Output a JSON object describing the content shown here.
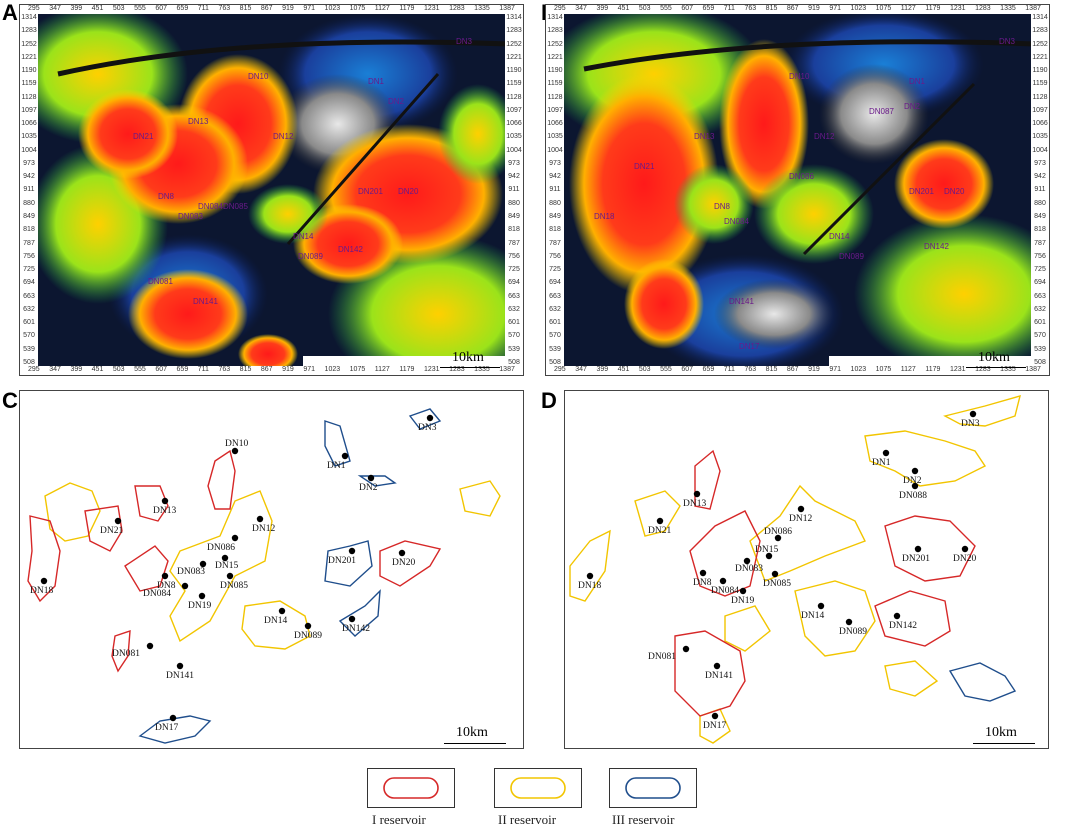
{
  "panels": {
    "A": {
      "letter": "A",
      "scale": "10km"
    },
    "B": {
      "letter": "B",
      "scale": "10km"
    },
    "C": {
      "letter": "C",
      "scale": "10km"
    },
    "D": {
      "letter": "D",
      "scale": "10km"
    }
  },
  "axis": {
    "x_ticks": [
      "295",
      "347",
      "399",
      "451",
      "503",
      "555",
      "607",
      "659",
      "711",
      "763",
      "815",
      "867",
      "919",
      "971",
      "1023",
      "1075",
      "1127",
      "1179",
      "1231",
      "1283",
      "1335",
      "1387"
    ],
    "y_ticks": [
      "1314",
      "1283",
      "1252",
      "1221",
      "1190",
      "1159",
      "1128",
      "1097",
      "1066",
      "1035",
      "1004",
      "973",
      "942",
      "911",
      "880",
      "849",
      "818",
      "787",
      "756",
      "725",
      "694",
      "663",
      "632",
      "601",
      "570",
      "539",
      "508"
    ]
  },
  "wells_C": [
    {
      "name": "DN3"
    },
    {
      "name": "DN1"
    },
    {
      "name": "DN2"
    },
    {
      "name": "DN10"
    },
    {
      "name": "DN13"
    },
    {
      "name": "DN21"
    },
    {
      "name": "DN12"
    },
    {
      "name": "DN086"
    },
    {
      "name": "DN15"
    },
    {
      "name": "DN083"
    },
    {
      "name": "DN085"
    },
    {
      "name": "DN8"
    },
    {
      "name": "DN084"
    },
    {
      "name": "DN19"
    },
    {
      "name": "DN18"
    },
    {
      "name": "DN201"
    },
    {
      "name": "DN20"
    },
    {
      "name": "DN14"
    },
    {
      "name": "DN089"
    },
    {
      "name": "DN142"
    },
    {
      "name": "DN081"
    },
    {
      "name": "DN141"
    },
    {
      "name": "DN17"
    }
  ],
  "wells_D": [
    {
      "name": "DN3"
    },
    {
      "name": "DN1"
    },
    {
      "name": "DN2"
    },
    {
      "name": "DN088"
    },
    {
      "name": "DN13"
    },
    {
      "name": "DN21"
    },
    {
      "name": "DN12"
    },
    {
      "name": "DN086"
    },
    {
      "name": "DN15"
    },
    {
      "name": "DN083"
    },
    {
      "name": "DN085"
    },
    {
      "name": "DN8"
    },
    {
      "name": "DN084"
    },
    {
      "name": "DN19"
    },
    {
      "name": "DN18"
    },
    {
      "name": "DN201"
    },
    {
      "name": "DN20"
    },
    {
      "name": "DN14"
    },
    {
      "name": "DN089"
    },
    {
      "name": "DN142"
    },
    {
      "name": "DN081"
    },
    {
      "name": "DN141"
    },
    {
      "name": "DN17"
    }
  ],
  "seismic_labels_A": [
    "DN3",
    "DN1",
    "DN2",
    "DN10",
    "DN12",
    "DN13",
    "DN21",
    "DN084",
    "DN8",
    "DN083",
    "DN085",
    "DN201",
    "DN20",
    "DN142",
    "DN089",
    "DN141",
    "DN081",
    "DN14"
  ],
  "seismic_labels_B": [
    "DN3",
    "DN1",
    "DN10",
    "DN2",
    "DN087",
    "DN12",
    "DN13",
    "DN21",
    "DN086",
    "DN201",
    "DN20",
    "DN18",
    "DN8",
    "DN084",
    "DN14",
    "DN089",
    "DN142",
    "DN141",
    "DN17"
  ],
  "legend": [
    {
      "label": "I  reservoir",
      "color": "#d62828"
    },
    {
      "label": "II  reservoir",
      "color": "#f2c500"
    },
    {
      "label": "III reservoir",
      "color": "#1f4e8c"
    }
  ]
}
